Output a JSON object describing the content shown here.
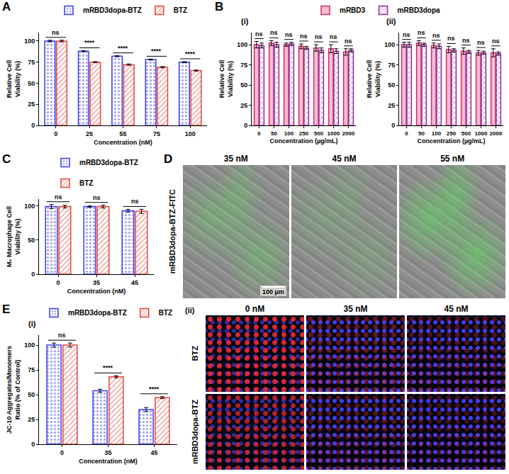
{
  "chart_data": [
    {
      "panel": "A",
      "type": "bar",
      "x_label": "Concentration (nM)",
      "y_label": "Relative Cell Viability (%)",
      "categories": [
        "0",
        "25",
        "55",
        "75",
        "100"
      ],
      "series": [
        {
          "name": "mRBD3dopa-BTZ",
          "color": "#3d3df0",
          "values": [
            100,
            88,
            82,
            78,
            75
          ],
          "errors": [
            1,
            0.6,
            0.6,
            0.6,
            0.6
          ]
        },
        {
          "name": "BTZ",
          "color": "#e8453c",
          "values": [
            100,
            75,
            72,
            69,
            65
          ],
          "errors": [
            1,
            0.6,
            0.8,
            0.8,
            0.6
          ]
        }
      ],
      "significance": [
        "ns",
        "****",
        "****",
        "****",
        "****"
      ],
      "ylim": [
        0,
        110
      ],
      "yticks": [
        0,
        25,
        50,
        75,
        100
      ],
      "grid": false,
      "legend": "top"
    },
    {
      "panel": "B",
      "subpanel": "(i)",
      "type": "bar",
      "x_label": "Concentration (µg/mL)",
      "y_label": "Relative Cell Viability (%)",
      "categories": [
        "0",
        "50",
        "100",
        "250",
        "500",
        "1000",
        "2000"
      ],
      "series": [
        {
          "name": "mRBD3",
          "color": "#d6286a",
          "values": [
            100,
            102,
            100,
            98,
            96,
            95,
            91
          ],
          "errors": [
            4,
            3,
            2,
            3,
            4,
            5,
            4
          ]
        },
        {
          "name": "mRBD3dopa",
          "color": "#8e2a9c",
          "values": [
            99,
            100,
            101,
            96,
            93,
            92,
            93
          ],
          "errors": [
            3,
            3,
            2,
            2,
            3,
            3,
            2
          ]
        }
      ],
      "significance": [
        "ns",
        "ns",
        "ns",
        "ns",
        "ns",
        "ns",
        "ns"
      ],
      "ylim": [
        0,
        115
      ],
      "yticks": [
        0,
        25,
        50,
        75,
        100
      ],
      "grid": false,
      "legend": "top"
    },
    {
      "panel": "B",
      "subpanel": "(ii)",
      "type": "bar",
      "x_label": "Concentration (µg/mL)",
      "y_label": "Relative Cell Viability (%)",
      "categories": [
        "0",
        "50",
        "100",
        "250",
        "500",
        "1000",
        "2000"
      ],
      "series": [
        {
          "name": "mRBD3",
          "color": "#d6286a",
          "values": [
            100,
            102,
            99,
            94,
            92,
            90,
            90
          ],
          "errors": [
            3,
            3,
            3,
            4,
            4,
            3,
            5
          ]
        },
        {
          "name": "mRBD3dopa",
          "color": "#8e2a9c",
          "values": [
            100,
            100,
            98,
            93,
            91,
            90,
            89
          ],
          "errors": [
            3,
            2,
            3,
            2,
            2,
            2,
            2
          ]
        }
      ],
      "significance": [
        "ns",
        "ns",
        "ns",
        "ns",
        "ns",
        "ns",
        "ns"
      ],
      "ylim": [
        0,
        115
      ],
      "yticks": [
        0,
        25,
        50,
        75,
        100
      ],
      "grid": false
    },
    {
      "panel": "C",
      "type": "bar",
      "x_label": "Concentration (nM)",
      "y_label": "M₀ Macrophage Cell Viability (%)",
      "categories": [
        "0",
        "35",
        "45"
      ],
      "series": [
        {
          "name": "mRBD3dopa-BTZ",
          "color": "#3d3df0",
          "values": [
            99,
            99,
            93
          ],
          "errors": [
            3,
            1,
            2
          ]
        },
        {
          "name": "BTZ",
          "color": "#e8453c",
          "values": [
            99,
            99,
            92
          ],
          "errors": [
            2,
            2,
            3
          ]
        }
      ],
      "significance": [
        "ns",
        "ns",
        "ns"
      ],
      "ylim": [
        0,
        110
      ],
      "yticks": [
        0,
        50,
        100
      ],
      "grid": false,
      "legend": "top"
    },
    {
      "panel": "E",
      "subpanel": "(i)",
      "type": "bar",
      "x_label": "Concentration (nM)",
      "y_label": "JC-10 Aggregates/Monomers Ratio (% of Control)",
      "categories": [
        "0",
        "35",
        "45"
      ],
      "series": [
        {
          "name": "mRBD3dopa-BTZ",
          "color": "#3d3df0",
          "values": [
            100,
            54,
            35
          ],
          "errors": [
            2,
            1.5,
            2
          ]
        },
        {
          "name": "BTZ",
          "color": "#e8453c",
          "values": [
            100,
            68,
            47
          ],
          "errors": [
            2,
            1,
            1
          ]
        }
      ],
      "significance": [
        "ns",
        "****",
        "****"
      ],
      "ylim": [
        0,
        110
      ],
      "yticks": [
        0,
        25,
        50,
        75,
        100
      ],
      "grid": false,
      "legend": "top"
    }
  ],
  "image_panels": [
    {
      "panel": "D",
      "row_labels": [
        "mRBD3dopa-BTZ-FITC"
      ],
      "column_labels": [
        "35 nM",
        "45 nM",
        "55 nM"
      ],
      "scale_bar": "100 µm"
    },
    {
      "subpanel": "(ii)",
      "row_labels": [
        "BTZ",
        "mRBD3dopa-BTZ"
      ],
      "column_labels": [
        "0 nM",
        "35 nM",
        "45 nM"
      ]
    }
  ]
}
